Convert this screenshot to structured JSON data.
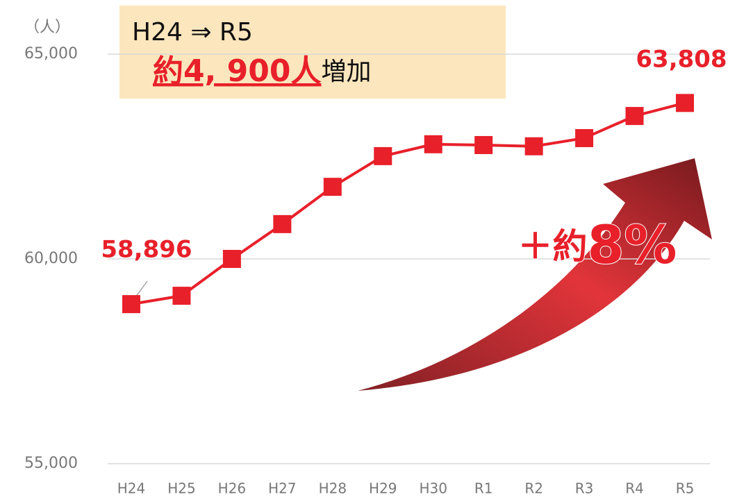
{
  "chart_data": {
    "type": "line",
    "unit_label": "（人）",
    "categories": [
      "H24",
      "H25",
      "H26",
      "H27",
      "H28",
      "H29",
      "H30",
      "R1",
      "R2",
      "R3",
      "R4",
      "R5"
    ],
    "series": [
      {
        "color": "#e8202a",
        "values": [
          58896,
          59100,
          60000,
          60850,
          61760,
          62510,
          62800,
          62780,
          62750,
          62950,
          63490,
          63808
        ],
        "value_labels": [
          "58,896",
          null,
          null,
          null,
          null,
          null,
          null,
          null,
          null,
          null,
          null,
          "63,808"
        ]
      }
    ],
    "ylim": [
      55000,
      65000
    ],
    "yticks": [
      {
        "value": 55000,
        "label": "55,000"
      },
      {
        "value": 60000,
        "label": "60,000"
      },
      {
        "value": 65000,
        "label": "65,000"
      }
    ],
    "grid": true,
    "annotation": {
      "line1": "H24 ⇒ R5",
      "highlight": "約4, 900人",
      "rest": "増加"
    },
    "growth_label": {
      "prefix": "＋約",
      "value": "8%"
    }
  }
}
